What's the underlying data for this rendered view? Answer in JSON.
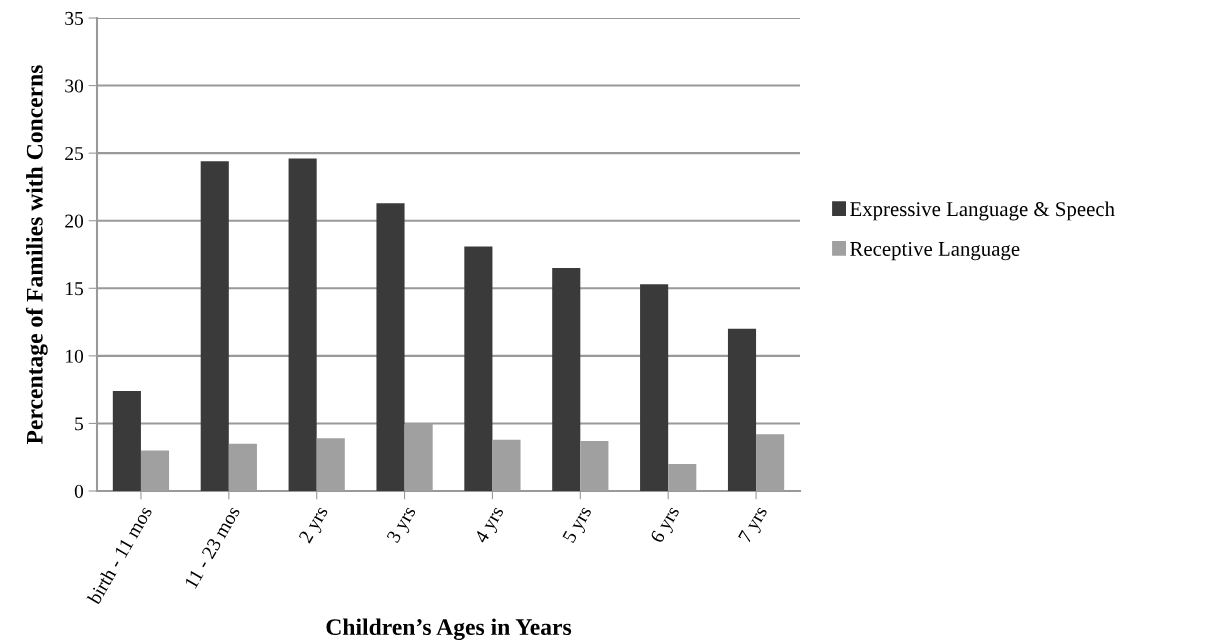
{
  "chart_data": {
    "type": "bar",
    "xlabel": "Children’s Ages in Years",
    "ylabel": "Percentage of Families with Concerns",
    "categories": [
      "birth - 11 mos",
      "11 - 23 mos",
      "2 yrs",
      "3 yrs",
      "4 yrs",
      "5 yrs",
      "6 yrs",
      "7 yrs"
    ],
    "series": [
      {
        "name": "Expressive Language & Speech",
        "color": "#3a3a3a",
        "values": [
          7.4,
          24.4,
          24.6,
          21.3,
          18.1,
          16.5,
          15.3,
          12.0
        ]
      },
      {
        "name": "Receptive Language",
        "color": "#a0a0a0",
        "values": [
          3.0,
          3.5,
          3.9,
          5.0,
          3.8,
          3.7,
          2.0,
          4.2
        ]
      }
    ],
    "ylim": [
      0,
      35
    ],
    "yticks": [
      0,
      5,
      10,
      15,
      20,
      25,
      30,
      35
    ],
    "grid": "y",
    "legend": "right"
  }
}
